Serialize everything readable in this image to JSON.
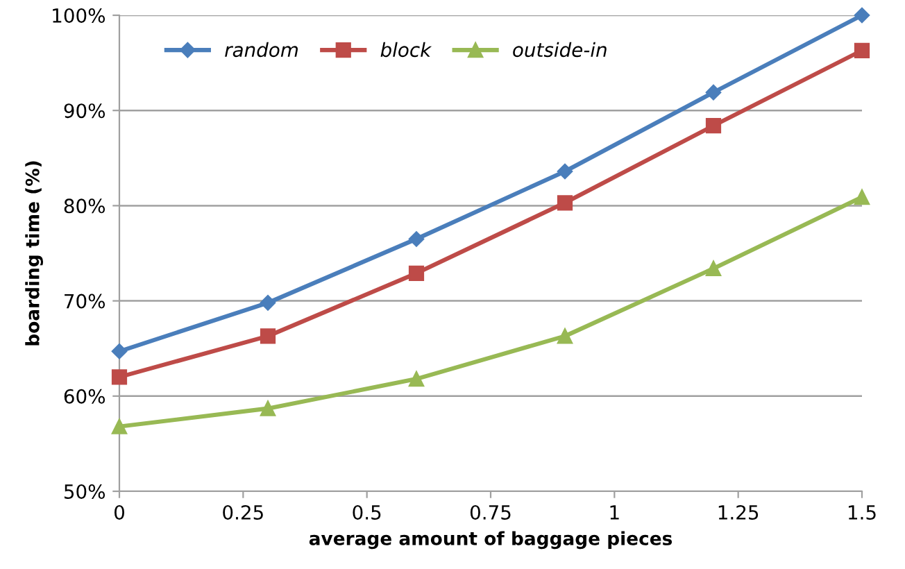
{
  "chart_data": {
    "type": "line",
    "xlabel": "average amount of baggage pieces",
    "ylabel": "boarding time (%)",
    "x": [
      0,
      0.3,
      0.6,
      0.9,
      1.2,
      1.5
    ],
    "series": [
      {
        "name": "random",
        "color": "#4a7ebb",
        "marker": "diamond",
        "values": [
          64.7,
          69.8,
          76.5,
          83.6,
          91.9,
          100
        ]
      },
      {
        "name": "block",
        "color": "#be4b48",
        "marker": "square",
        "values": [
          62.0,
          66.3,
          72.9,
          80.3,
          88.4,
          96.3
        ]
      },
      {
        "name": "outside-in",
        "color": "#98b954",
        "marker": "triangle",
        "values": [
          56.8,
          58.7,
          61.8,
          66.3,
          73.4,
          80.9
        ]
      }
    ],
    "xlim": [
      0,
      1.5
    ],
    "xticks": [
      0,
      0.25,
      0.5,
      0.75,
      1,
      1.25,
      1.5
    ],
    "ylim": [
      50,
      100
    ],
    "yticks": [
      {
        "value": 50,
        "label": "50%"
      },
      {
        "value": 60,
        "label": "60%"
      },
      {
        "value": 70,
        "label": "70%"
      },
      {
        "value": 80,
        "label": "80%"
      },
      {
        "value": 90,
        "label": "90%"
      },
      {
        "value": 100,
        "label": "100%"
      }
    ],
    "grid": "y",
    "legend": "top left",
    "line_style": "solid"
  }
}
